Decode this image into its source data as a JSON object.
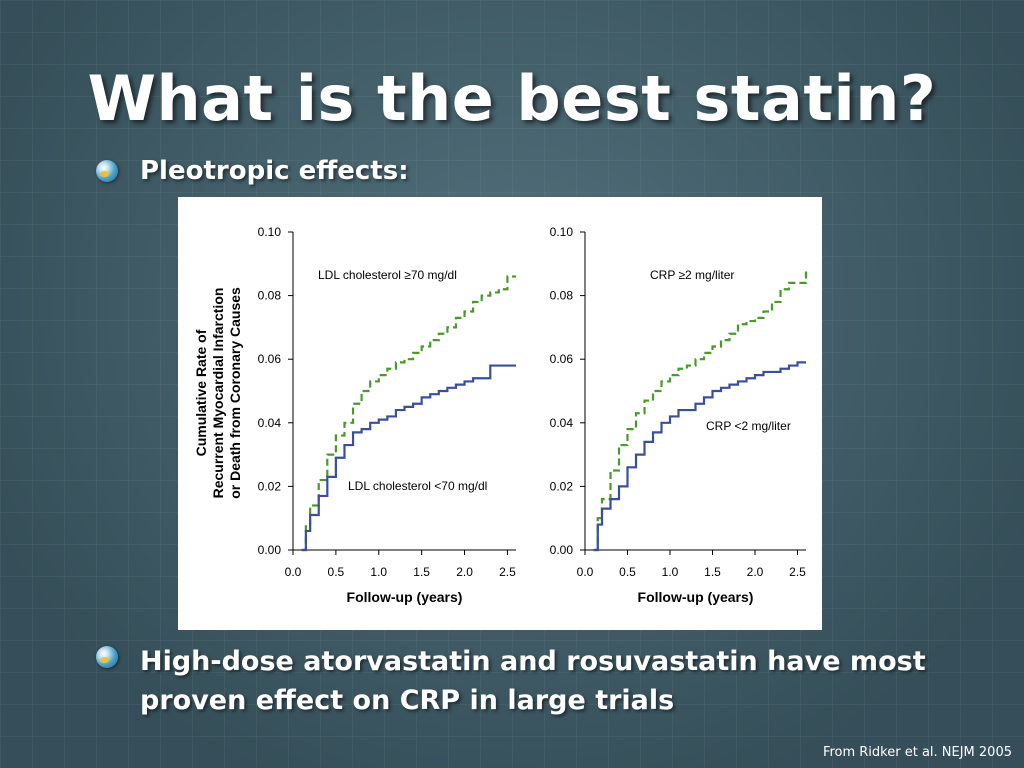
{
  "slide": {
    "title": "What is the best statin?",
    "bullets": [
      {
        "text": "Pleotropic effects:",
        "icon": "globe-bullet-icon"
      },
      {
        "text": "High-dose atorvastatin and rosuvastatin have most proven effect on CRP in large trials",
        "icon": "globe-bullet-icon"
      }
    ],
    "citation": "From Ridker et al. NEJM 2005"
  },
  "colors": {
    "background": "#3e5c68",
    "high_series": "#4a9a2a",
    "low_series": "#3a4ea0"
  },
  "chart_data": [
    {
      "type": "line",
      "xlabel": "Follow-up (years)",
      "ylabel": "Cumulative Rate of\nRecurrent Myocardial Infarction\nor Death from Coronary Causes",
      "xlim": [
        0.0,
        2.6
      ],
      "ylim": [
        0.0,
        0.1
      ],
      "x_ticks": [
        "0.0",
        "0.5",
        "1.0",
        "1.5",
        "2.0",
        "2.5"
      ],
      "y_ticks": [
        "0.00",
        "0.02",
        "0.04",
        "0.06",
        "0.08",
        "0.10"
      ],
      "series": [
        {
          "name": "LDL cholesterol ≥70 mg/dl",
          "style": "dashed",
          "x": [
            0.1,
            0.15,
            0.2,
            0.3,
            0.4,
            0.5,
            0.6,
            0.7,
            0.8,
            0.9,
            1.0,
            1.1,
            1.2,
            1.3,
            1.4,
            1.5,
            1.6,
            1.7,
            1.8,
            1.9,
            2.0,
            2.1,
            2.2,
            2.3,
            2.4,
            2.5,
            2.6
          ],
          "y": [
            0.0,
            0.008,
            0.014,
            0.022,
            0.03,
            0.036,
            0.04,
            0.046,
            0.05,
            0.053,
            0.055,
            0.057,
            0.059,
            0.06,
            0.062,
            0.064,
            0.066,
            0.068,
            0.07,
            0.073,
            0.075,
            0.078,
            0.08,
            0.081,
            0.082,
            0.086,
            0.086
          ]
        },
        {
          "name": "LDL cholesterol <70 mg/dl",
          "style": "solid",
          "x": [
            0.1,
            0.15,
            0.2,
            0.3,
            0.4,
            0.5,
            0.6,
            0.7,
            0.8,
            0.9,
            1.0,
            1.1,
            1.2,
            1.3,
            1.4,
            1.5,
            1.6,
            1.7,
            1.8,
            1.9,
            2.0,
            2.1,
            2.2,
            2.3,
            2.4,
            2.5,
            2.6
          ],
          "y": [
            0.0,
            0.006,
            0.011,
            0.017,
            0.023,
            0.029,
            0.033,
            0.037,
            0.038,
            0.04,
            0.041,
            0.042,
            0.044,
            0.045,
            0.046,
            0.048,
            0.049,
            0.05,
            0.051,
            0.052,
            0.053,
            0.054,
            0.054,
            0.058,
            0.058,
            0.058,
            0.058
          ]
        }
      ]
    },
    {
      "type": "line",
      "xlabel": "Follow-up (years)",
      "ylabel": "",
      "xlim": [
        0.0,
        2.6
      ],
      "ylim": [
        0.0,
        0.1
      ],
      "x_ticks": [
        "0.0",
        "0.5",
        "1.0",
        "1.5",
        "2.0",
        "2.5"
      ],
      "y_ticks": [
        "0.00",
        "0.02",
        "0.04",
        "0.06",
        "0.08",
        "0.10"
      ],
      "series": [
        {
          "name": "CRP ≥2 mg/liter",
          "style": "dashed",
          "x": [
            0.1,
            0.15,
            0.2,
            0.3,
            0.4,
            0.5,
            0.6,
            0.7,
            0.8,
            0.9,
            1.0,
            1.1,
            1.2,
            1.3,
            1.4,
            1.5,
            1.6,
            1.7,
            1.8,
            1.9,
            2.0,
            2.1,
            2.2,
            2.3,
            2.4,
            2.5,
            2.6
          ],
          "y": [
            0.0,
            0.01,
            0.016,
            0.025,
            0.033,
            0.038,
            0.043,
            0.047,
            0.05,
            0.053,
            0.055,
            0.057,
            0.058,
            0.06,
            0.062,
            0.064,
            0.066,
            0.068,
            0.071,
            0.072,
            0.073,
            0.075,
            0.078,
            0.082,
            0.084,
            0.084,
            0.088
          ]
        },
        {
          "name": "CRP <2 mg/liter",
          "style": "solid",
          "x": [
            0.1,
            0.15,
            0.2,
            0.3,
            0.4,
            0.5,
            0.6,
            0.7,
            0.8,
            0.9,
            1.0,
            1.1,
            1.2,
            1.3,
            1.4,
            1.5,
            1.6,
            1.7,
            1.8,
            1.9,
            2.0,
            2.1,
            2.2,
            2.3,
            2.4,
            2.5,
            2.6
          ],
          "y": [
            0.0,
            0.008,
            0.013,
            0.016,
            0.02,
            0.026,
            0.03,
            0.034,
            0.037,
            0.04,
            0.042,
            0.044,
            0.044,
            0.046,
            0.048,
            0.05,
            0.051,
            0.052,
            0.053,
            0.054,
            0.055,
            0.056,
            0.056,
            0.057,
            0.058,
            0.059,
            0.059
          ]
        }
      ]
    }
  ]
}
